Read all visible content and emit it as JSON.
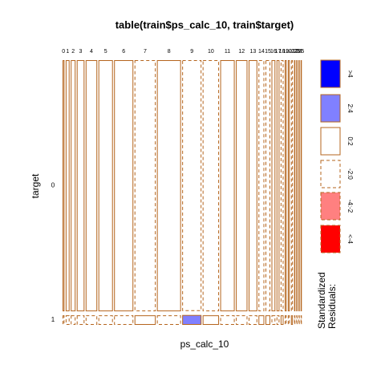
{
  "chart_data": {
    "type": "mosaic",
    "title": "table(train$ps_calc_10, train$target)",
    "xlabel": "ps_calc_10",
    "ylabel": "target",
    "categories": [
      "0",
      "1",
      "2",
      "3",
      "4",
      "5",
      "6",
      "7",
      "8",
      "9",
      "10",
      "11",
      "12",
      "13",
      "14",
      "15",
      "16",
      "17",
      "18",
      "19",
      "20",
      "21",
      "22",
      "23",
      "24",
      "25"
    ],
    "series": [
      {
        "name": "0",
        "values": [
          4839,
          9677,
          12097,
          19355,
          29032,
          36290,
          48387,
          53226,
          60484,
          48320,
          41129,
          36290,
          29032,
          21774,
          14516,
          12097,
          9677,
          7258,
          7258,
          4839,
          4839,
          4839,
          2419,
          2419,
          2419,
          2419
        ],
        "residuals": [
          0.3,
          0.2,
          0.4,
          0.5,
          0.6,
          0.8,
          0.5,
          -0.6,
          0.3,
          -0.9,
          -0.4,
          0.5,
          0.4,
          0.3,
          -0.3,
          -0.2,
          0.2,
          0.1,
          -0.1,
          0.1,
          0.1,
          -0.1,
          0.1,
          0.1,
          0.1,
          0.1
        ]
      },
      {
        "name": "1",
        "values": [
          183,
          367,
          458,
          733,
          1100,
          1375,
          1833,
          2016,
          2291,
          1900,
          1558,
          1375,
          1100,
          825,
          550,
          458,
          367,
          275,
          275,
          183,
          183,
          183,
          92,
          92,
          92,
          92
        ],
        "residuals": [
          -1.5,
          -1,
          -1.8,
          -1.9,
          -1.5,
          -1.9,
          -1.2,
          1.6,
          -0.8,
          2.5,
          1,
          -1.3,
          -1,
          -0.8,
          0.7,
          0.5,
          -0.5,
          -0.3,
          0.3,
          -0.3,
          -0.2,
          0.3,
          -0.2,
          -0.3,
          -0.2,
          -0.2
        ]
      }
    ],
    "border_color": "#b5651d",
    "residual_breaks": [
      -4,
      -2,
      0,
      2,
      4
    ],
    "legend_title": "Standardized\nResiduals:",
    "legend": [
      {
        "label": ">4",
        "color": "#0000ff",
        "dashed": false
      },
      {
        "label": "2:4",
        "color": "#8080ff",
        "dashed": false
      },
      {
        "label": "0:2",
        "color": "#ffffff",
        "dashed": false
      },
      {
        "label": "-2:0",
        "color": "#ffffff",
        "dashed": true
      },
      {
        "label": "-4:-2",
        "color": "#ff8080",
        "dashed": true
      },
      {
        "label": "<-4",
        "color": "#ff0000",
        "dashed": true
      }
    ]
  }
}
